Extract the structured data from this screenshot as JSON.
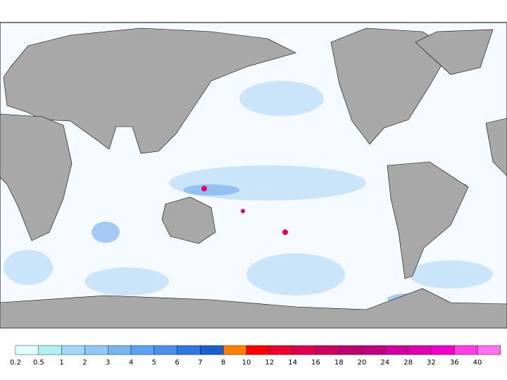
{
  "map": {
    "legend": {
      "ticks": [
        0.2,
        0.5,
        1,
        2,
        3,
        4,
        5,
        6,
        7,
        8,
        10,
        12,
        14,
        16,
        18,
        20,
        24,
        28,
        32,
        36,
        40
      ],
      "colors": [
        "#e0ffff",
        "#b0f0f0",
        "#a0d8f8",
        "#90c8f8",
        "#78b4f0",
        "#60a0f0",
        "#4890e8",
        "#3078e0",
        "#1860d0",
        "#ff7f00",
        "#ff0000",
        "#f00030",
        "#e00050",
        "#d00060",
        "#c00070",
        "#c00080",
        "#d000a0",
        "#e000b0",
        "#f000c8",
        "#ff40e0",
        "#ff70f0"
      ]
    }
  }
}
